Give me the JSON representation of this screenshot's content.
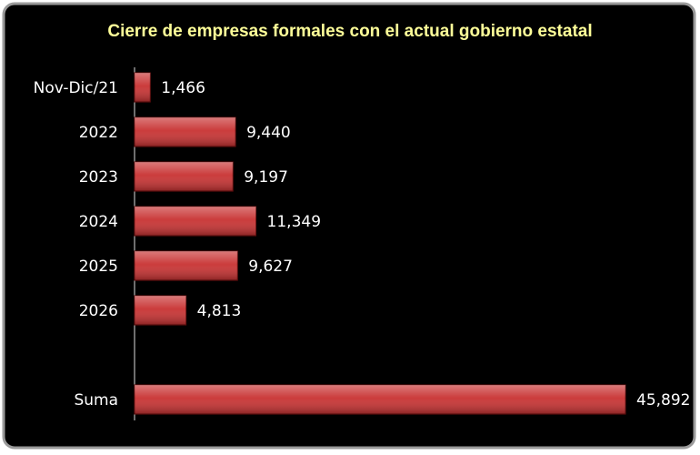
{
  "chart_data": {
    "type": "bar",
    "orientation": "horizontal",
    "title": "Cierre de empresas formales con el actual gobierno estatal",
    "categories": [
      "Nov-Dic/21",
      "2022",
      "2023",
      "2024",
      "2025",
      "2026",
      null,
      "Suma"
    ],
    "values": [
      1466,
      9440,
      9197,
      11349,
      9627,
      4813,
      null,
      45892
    ],
    "value_labels": [
      "1,466",
      "9,440",
      "9,197",
      "11,349",
      "9,627",
      "4,813",
      null,
      "45,892"
    ],
    "color": "#c83232"
  }
}
